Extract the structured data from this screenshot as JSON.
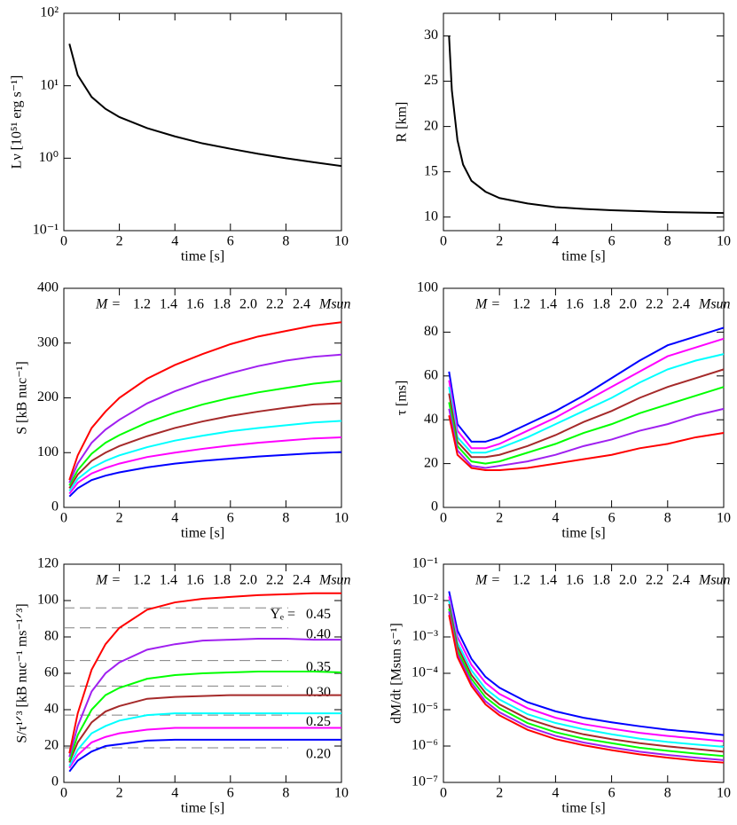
{
  "chart_data": [
    {
      "type": "line",
      "log_y": true,
      "ylabel": "Lν [10⁵¹ erg s⁻¹]",
      "xlabel": "time [s]",
      "xlim": [
        0,
        10
      ],
      "xticks": [
        0,
        2,
        4,
        6,
        8,
        10
      ],
      "ylim": [
        0.1,
        100
      ],
      "yticks": [
        {
          "value": 0.1,
          "label": "10⁻¹"
        },
        {
          "value": 1,
          "label": "10⁰"
        },
        {
          "value": 10,
          "label": "10¹"
        },
        {
          "value": 100,
          "label": "10²"
        }
      ],
      "x": [
        0.2,
        0.5,
        1,
        1.5,
        2,
        3,
        4,
        5,
        6,
        7,
        8,
        9,
        10
      ],
      "series": [
        {
          "color": "#000000",
          "values": [
            38,
            14,
            7,
            4.8,
            3.7,
            2.6,
            2.0,
            1.6,
            1.35,
            1.15,
            1.0,
            0.88,
            0.78
          ]
        }
      ]
    },
    {
      "type": "line",
      "ylabel": "R [km]",
      "xlabel": "time [s]",
      "xlim": [
        0,
        10
      ],
      "xticks": [
        0,
        2,
        4,
        6,
        8,
        10
      ],
      "ylim": [
        8.5,
        32.5
      ],
      "yticks": [
        10,
        15,
        20,
        25,
        30
      ],
      "x": [
        0.2,
        0.3,
        0.5,
        0.7,
        1,
        1.5,
        2,
        3,
        4,
        5,
        6,
        7,
        8,
        9,
        10
      ],
      "series": [
        {
          "color": "#000000",
          "values": [
            30,
            24,
            18.5,
            15.8,
            14,
            12.8,
            12.1,
            11.5,
            11.1,
            10.9,
            10.75,
            10.65,
            10.55,
            10.5,
            10.45
          ]
        }
      ]
    },
    {
      "type": "line",
      "ylabel": "S [kB nuc⁻¹]",
      "xlabel": "time [s]",
      "xlim": [
        0,
        10
      ],
      "xticks": [
        0,
        2,
        4,
        6,
        8,
        10
      ],
      "ylim": [
        0,
        400
      ],
      "yticks": [
        0,
        100,
        200,
        300,
        400
      ],
      "legend_prefix": "M =",
      "legend_suffix": "Msun",
      "x": [
        0.2,
        0.5,
        1,
        1.5,
        2,
        3,
        4,
        5,
        6,
        7,
        8,
        9,
        10
      ],
      "series": [
        {
          "name": "1.2",
          "color": "#0000ff",
          "values": [
            20,
            35,
            50,
            58,
            64,
            73,
            80,
            85,
            89,
            93,
            96,
            99,
            101
          ]
        },
        {
          "name": "1.4",
          "color": "#ff00ff",
          "values": [
            25,
            45,
            62,
            72,
            80,
            92,
            100,
            107,
            113,
            118,
            122,
            126,
            128
          ]
        },
        {
          "name": "1.6",
          "color": "#00ffff",
          "values": [
            30,
            52,
            72,
            85,
            95,
            110,
            122,
            131,
            139,
            145,
            150,
            155,
            158
          ]
        },
        {
          "name": "1.8",
          "color": "#a52a2a",
          "values": [
            35,
            60,
            85,
            100,
            112,
            130,
            145,
            157,
            167,
            175,
            182,
            188,
            190
          ]
        },
        {
          "name": "2.0",
          "color": "#00ff00",
          "values": [
            40,
            68,
            98,
            118,
            132,
            155,
            173,
            188,
            200,
            210,
            218,
            226,
            231
          ]
        },
        {
          "name": "2.2",
          "color": "#a020f0",
          "values": [
            45,
            80,
            118,
            142,
            160,
            190,
            212,
            230,
            245,
            258,
            268,
            275,
            279
          ]
        },
        {
          "name": "2.4",
          "color": "#ff0000",
          "values": [
            50,
            95,
            145,
            175,
            200,
            235,
            260,
            280,
            298,
            312,
            322,
            332,
            338
          ]
        }
      ]
    },
    {
      "type": "line",
      "ylabel": "τ [ms]",
      "xlabel": "time [s]",
      "xlim": [
        0,
        10
      ],
      "xticks": [
        0,
        2,
        4,
        6,
        8,
        10
      ],
      "ylim": [
        0,
        100
      ],
      "yticks": [
        0,
        20,
        40,
        60,
        80,
        100
      ],
      "legend_prefix": "M =",
      "legend_suffix": "Msun",
      "x": [
        0.2,
        0.5,
        1,
        1.5,
        2,
        3,
        4,
        5,
        6,
        7,
        8,
        9,
        10
      ],
      "series": [
        {
          "name": "1.2",
          "color": "#0000ff",
          "values": [
            62,
            38,
            30,
            30,
            32,
            38,
            44,
            51,
            59,
            67,
            74,
            78,
            82
          ]
        },
        {
          "name": "1.4",
          "color": "#ff00ff",
          "values": [
            58,
            35,
            27,
            27,
            29,
            35,
            41,
            48,
            55,
            62,
            69,
            73,
            77
          ]
        },
        {
          "name": "1.6",
          "color": "#00ffff",
          "values": [
            55,
            32,
            25,
            25,
            27,
            32,
            38,
            44,
            50,
            57,
            63,
            67,
            70
          ]
        },
        {
          "name": "1.8",
          "color": "#a52a2a",
          "values": [
            52,
            30,
            23,
            23,
            24,
            28,
            33,
            39,
            44,
            50,
            55,
            59,
            63
          ]
        },
        {
          "name": "2.0",
          "color": "#00ff00",
          "values": [
            48,
            28,
            21,
            20,
            21,
            25,
            29,
            34,
            38,
            43,
            47,
            51,
            55
          ]
        },
        {
          "name": "2.2",
          "color": "#a020f0",
          "values": [
            45,
            26,
            19,
            18,
            19,
            21,
            24,
            28,
            31,
            35,
            38,
            42,
            45
          ]
        },
        {
          "name": "2.4",
          "color": "#ff0000",
          "values": [
            42,
            24,
            18,
            17,
            17,
            18,
            20,
            22,
            24,
            27,
            29,
            32,
            34
          ]
        }
      ]
    },
    {
      "type": "line",
      "ylabel": "S/τ¹ᐟ³ [kB nuc⁻¹ ms⁻¹ᐟ³]",
      "xlabel": "time [s]",
      "xlim": [
        0,
        10
      ],
      "xticks": [
        0,
        2,
        4,
        6,
        8,
        10
      ],
      "ylim": [
        0,
        120
      ],
      "yticks": [
        0,
        20,
        40,
        60,
        80,
        100,
        120
      ],
      "legend_prefix": "M =",
      "legend_suffix": "Msun",
      "ye_label": "Yₑ =",
      "ye_lines": [
        {
          "value": 96,
          "label": "0.45"
        },
        {
          "value": 85,
          "label": "0.40"
        },
        {
          "value": 67,
          "label": "0.35"
        },
        {
          "value": 53,
          "label": "0.30"
        },
        {
          "value": 37,
          "label": "0.25"
        },
        {
          "value": 19,
          "label": "0.20"
        }
      ],
      "x": [
        0.2,
        0.5,
        1,
        1.5,
        2,
        3,
        4,
        5,
        6,
        7,
        8,
        9,
        10
      ],
      "series": [
        {
          "name": "1.2",
          "color": "#0000ff",
          "values": [
            6,
            12,
            17,
            20,
            21,
            23,
            23.5,
            23.5,
            23.5,
            23.5,
            23.5,
            23.5,
            23.5
          ]
        },
        {
          "name": "1.4",
          "color": "#ff00ff",
          "values": [
            8,
            15,
            22,
            25,
            27,
            29,
            30,
            30,
            30,
            30,
            30,
            30,
            30
          ]
        },
        {
          "name": "1.6",
          "color": "#00ffff",
          "values": [
            9,
            18,
            27,
            31,
            34,
            37,
            38,
            38,
            38,
            38,
            38,
            38,
            38
          ]
        },
        {
          "name": "1.8",
          "color": "#a52a2a",
          "values": [
            11,
            22,
            33,
            39,
            42,
            46,
            47,
            47.5,
            48,
            48,
            48,
            48,
            48
          ]
        },
        {
          "name": "2.0",
          "color": "#00ff00",
          "values": [
            12,
            26,
            40,
            48,
            52,
            57,
            59,
            60,
            60.5,
            61,
            61,
            61,
            60.5
          ]
        },
        {
          "name": "2.2",
          "color": "#a020f0",
          "values": [
            14,
            31,
            50,
            60,
            66,
            73,
            76,
            78,
            78.5,
            79,
            79,
            78.5,
            78.5
          ]
        },
        {
          "name": "2.4",
          "color": "#ff0000",
          "values": [
            16,
            38,
            62,
            76,
            85,
            95,
            99,
            101,
            102,
            103,
            103.5,
            104,
            104
          ]
        }
      ]
    },
    {
      "type": "line",
      "log_y": true,
      "ylabel": "dM/dt [Msun s⁻¹]",
      "xlabel": "time [s]",
      "xlim": [
        0,
        10
      ],
      "xticks": [
        0,
        2,
        4,
        6,
        8,
        10
      ],
      "ylim": [
        1e-07,
        0.1
      ],
      "yticks": [
        {
          "value": 1e-07,
          "label": "10⁻⁷"
        },
        {
          "value": 1e-06,
          "label": "10⁻⁶"
        },
        {
          "value": 1e-05,
          "label": "10⁻⁵"
        },
        {
          "value": 0.0001,
          "label": "10⁻⁴"
        },
        {
          "value": 0.001,
          "label": "10⁻³"
        },
        {
          "value": 0.01,
          "label": "10⁻²"
        },
        {
          "value": 0.1,
          "label": "10⁻¹"
        }
      ],
      "legend_prefix": "M =",
      "legend_suffix": "Msun",
      "x": [
        0.2,
        0.5,
        1,
        1.5,
        2,
        3,
        4,
        5,
        6,
        7,
        8,
        9,
        10
      ],
      "series": [
        {
          "name": "1.2",
          "color": "#0000ff",
          "values": [
            0.018,
            0.0015,
            0.00025,
            8e-05,
            4e-05,
            1.6e-05,
            9e-06,
            6e-06,
            4.5e-06,
            3.5e-06,
            2.8e-06,
            2.4e-06,
            2e-06
          ]
        },
        {
          "name": "1.4",
          "color": "#ff00ff",
          "values": [
            0.013,
            0.001,
            0.00017,
            5.5e-05,
            2.7e-05,
            1.1e-05,
            6e-06,
            4e-06,
            3e-06,
            2.3e-06,
            1.9e-06,
            1.6e-06,
            1.35e-06
          ]
        },
        {
          "name": "1.6",
          "color": "#00ffff",
          "values": [
            0.01,
            0.0007,
            0.00012,
            3.8e-05,
            1.9e-05,
            7.5e-06,
            4.3e-06,
            2.9e-06,
            2.1e-06,
            1.6e-06,
            1.3e-06,
            1.1e-06,
            9.5e-07
          ]
        },
        {
          "name": "1.8",
          "color": "#a52a2a",
          "values": [
            0.008,
            0.00055,
            9e-05,
            2.9e-05,
            1.4e-05,
            5.6e-06,
            3.2e-06,
            2.1e-06,
            1.55e-06,
            1.2e-06,
            9.8e-07,
            8.3e-07,
            7e-07
          ]
        },
        {
          "name": "2.0",
          "color": "#00ff00",
          "values": [
            0.006,
            0.00042,
            7e-05,
            2.2e-05,
            1.1e-05,
            4.3e-06,
            2.4e-06,
            1.6e-06,
            1.2e-06,
            9e-07,
            7.4e-07,
            6.2e-07,
            5.3e-07
          ]
        },
        {
          "name": "2.2",
          "color": "#a020f0",
          "values": [
            0.005,
            0.00034,
            5.5e-05,
            1.7e-05,
            8.5e-06,
            3.4e-06,
            1.9e-06,
            1.25e-06,
            9.2e-07,
            7e-07,
            5.7e-07,
            4.8e-07,
            4.1e-07
          ]
        },
        {
          "name": "2.4",
          "color": "#ff0000",
          "values": [
            0.004,
            0.00028,
            4.5e-05,
            1.4e-05,
            7e-06,
            2.8e-06,
            1.55e-06,
            1.05e-06,
            7.7e-07,
            5.9e-07,
            4.8e-07,
            4e-07,
            3.5e-07
          ]
        }
      ]
    }
  ]
}
